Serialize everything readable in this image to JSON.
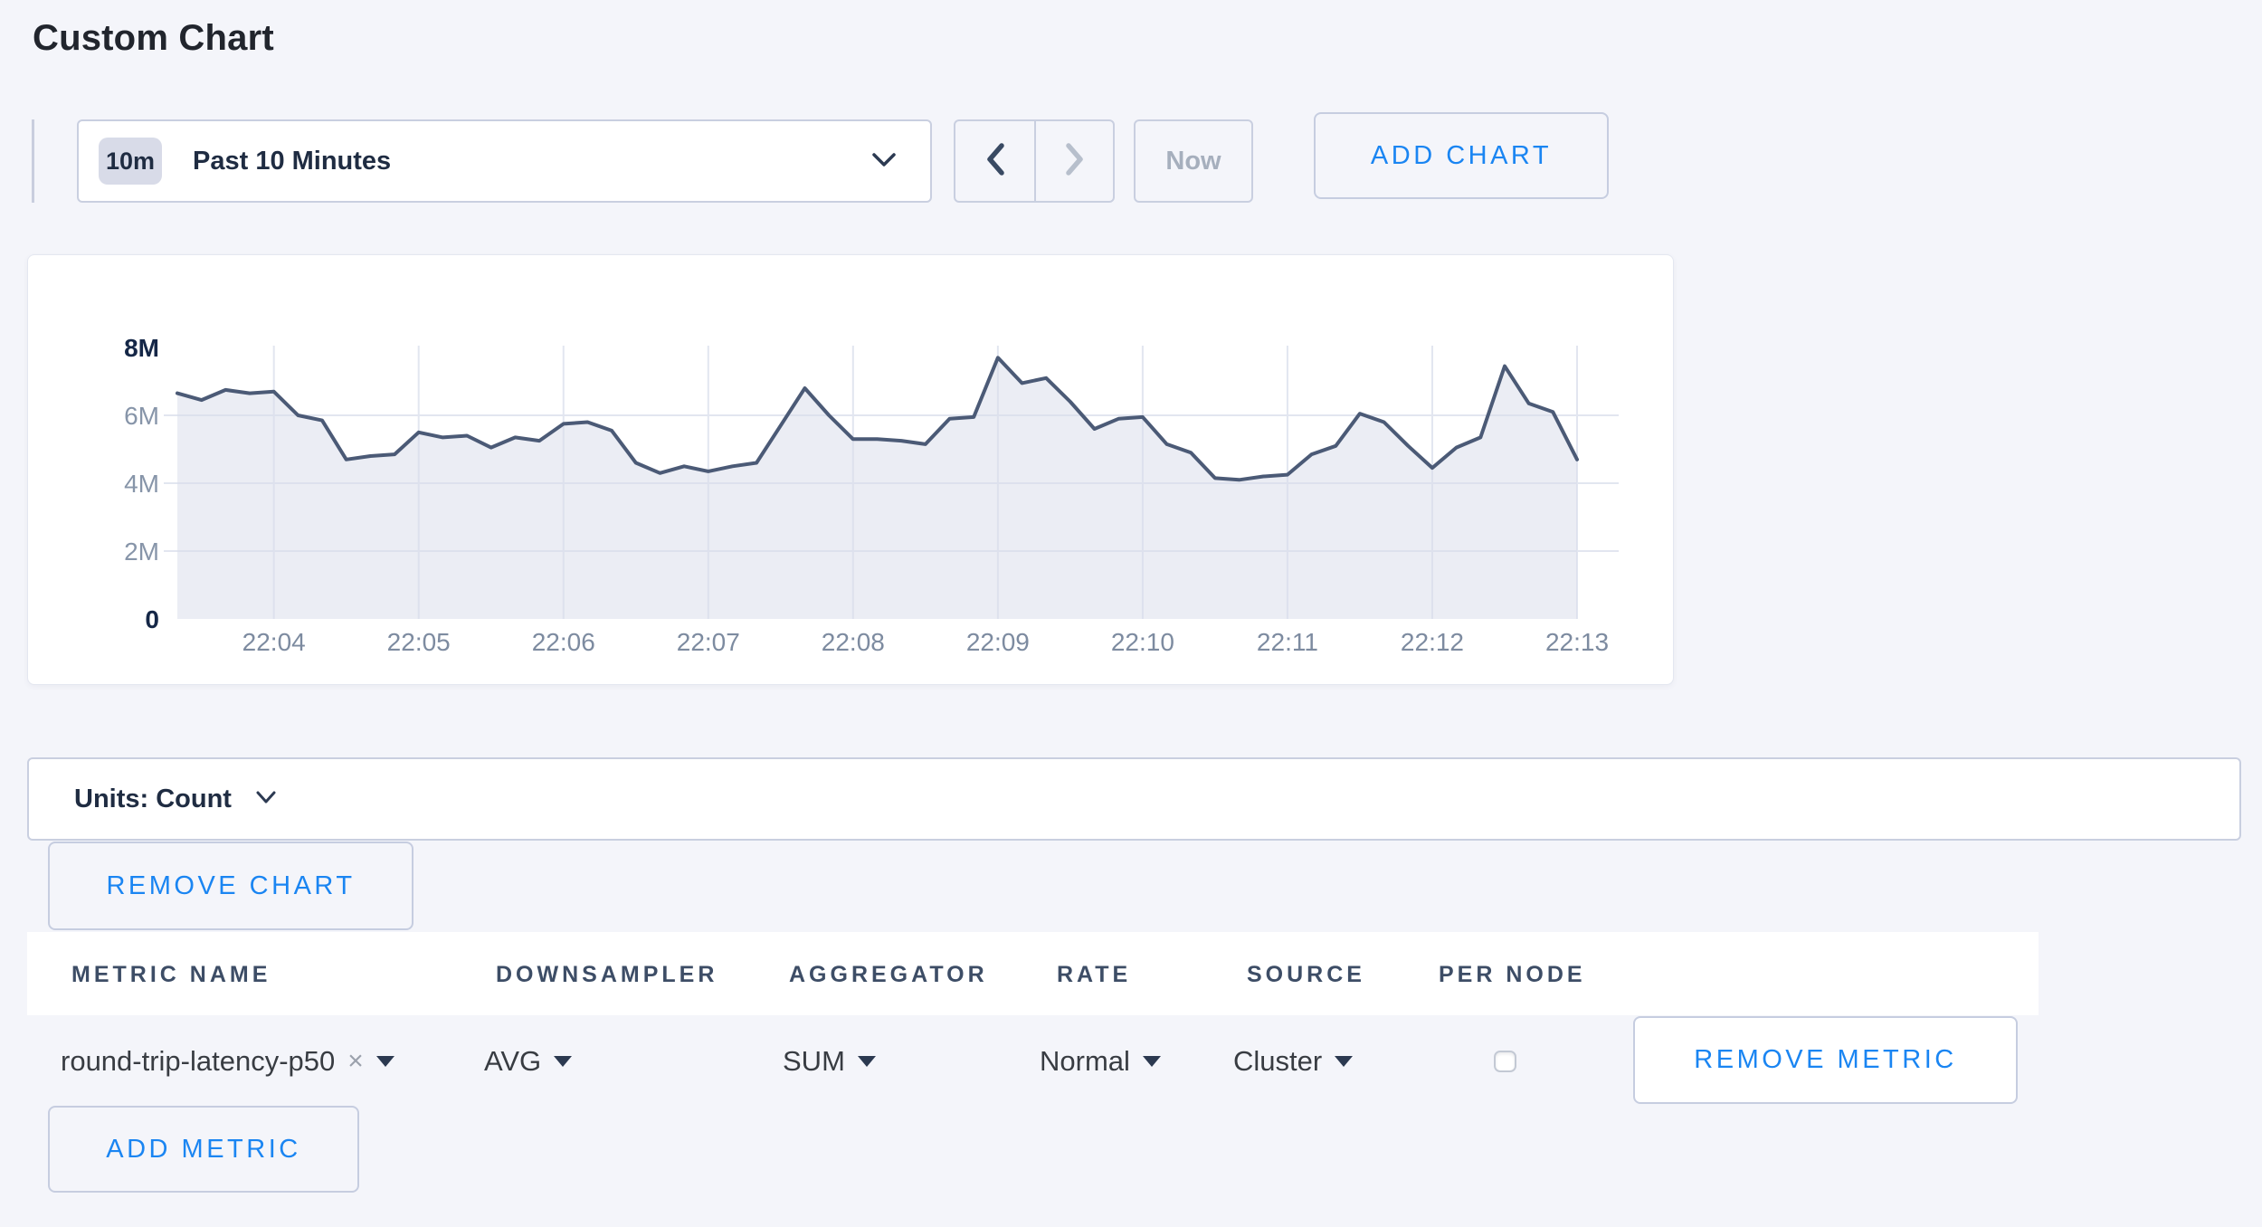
{
  "page": {
    "title": "Custom Chart"
  },
  "toolbar": {
    "timescale": {
      "badge": "10m",
      "label": "Past 10 Minutes"
    },
    "now_label": "Now",
    "add_chart_label": "ADD CHART"
  },
  "chart_data": {
    "type": "area",
    "series": [
      {
        "name": "round-trip-latency-p50",
        "start_time": "22:03:20",
        "interval_seconds": 10,
        "values_millions": [
          6.65,
          6.45,
          6.75,
          6.65,
          6.7,
          6.0,
          5.85,
          4.7,
          4.8,
          4.85,
          5.5,
          5.35,
          5.4,
          5.05,
          5.35,
          5.25,
          5.75,
          5.8,
          5.55,
          4.6,
          4.3,
          4.5,
          4.35,
          4.5,
          4.6,
          5.7,
          6.8,
          6.0,
          5.3,
          5.3,
          5.25,
          5.15,
          5.9,
          5.95,
          7.7,
          6.95,
          7.1,
          6.4,
          5.6,
          5.9,
          5.95,
          5.15,
          4.9,
          4.15,
          4.1,
          4.2,
          4.25,
          4.85,
          5.1,
          6.05,
          5.8,
          5.1,
          4.45,
          5.05,
          5.35,
          7.45,
          6.35,
          6.1,
          4.7
        ]
      }
    ],
    "x_ticks": [
      "22:04",
      "22:05",
      "22:06",
      "22:07",
      "22:08",
      "22:09",
      "22:10",
      "22:11",
      "22:12",
      "22:13"
    ],
    "y_ticks": [
      {
        "label": "0",
        "value_millions": 0,
        "emphasis": true
      },
      {
        "label": "2M",
        "value_millions": 2,
        "emphasis": false
      },
      {
        "label": "4M",
        "value_millions": 4,
        "emphasis": false
      },
      {
        "label": "6M",
        "value_millions": 6,
        "emphasis": false
      },
      {
        "label": "8M",
        "value_millions": 8,
        "emphasis": true
      }
    ],
    "ylim_millions": [
      0,
      8
    ],
    "unit": "Count",
    "grid": true,
    "legend": "none",
    "line_color": "#4b5a76",
    "fill_color": "#e9ebf2"
  },
  "units_bar": {
    "label": "Units: Count"
  },
  "chart_actions": {
    "remove_chart_label": "REMOVE CHART"
  },
  "metrics_table": {
    "headers": [
      "METRIC NAME",
      "DOWNSAMPLER",
      "AGGREGATOR",
      "RATE",
      "SOURCE",
      "PER NODE"
    ],
    "rows": [
      {
        "metric_name": "round-trip-latency-p50",
        "remove_tag": "×",
        "downsampler": "AVG",
        "aggregator": "SUM",
        "rate": "Normal",
        "source": "Cluster",
        "per_node_checked": false,
        "remove_label": "REMOVE METRIC"
      }
    ],
    "add_metric_label": "ADD METRIC"
  },
  "colors": {
    "accent_blue": "#1a85f2",
    "text_navy": "#1f2c42",
    "page_background": "#f4f5fa"
  }
}
